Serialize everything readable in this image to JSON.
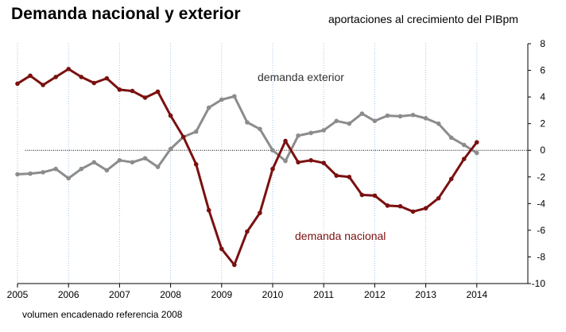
{
  "header": {
    "title": "Demanda nacional y exterior",
    "subtitle": "aportaciones al crecimiento del PIBpm"
  },
  "footnote": "volumen  encadenado referencia 2008",
  "chart_data": {
    "type": "line",
    "title": "Demanda nacional y exterior",
    "ylabel": "aportaciones al crecimiento del PIBpm",
    "xlabel": "",
    "ylim": [
      -10,
      8
    ],
    "yticks": [
      8,
      6,
      4,
      2,
      0,
      -2,
      -4,
      -6,
      -8,
      -10
    ],
    "xlim": [
      2005.0,
      2015.0
    ],
    "year_labels": [
      "2005",
      "2006",
      "2007",
      "2008",
      "2009",
      "2010",
      "2011",
      "2012",
      "2013",
      "2014"
    ],
    "zero_line": "dotted",
    "vertical_grid": "dotted-blue",
    "series": [
      {
        "name": "demanda exterior",
        "color": "#8c8c8c",
        "label_text": "demanda exterior",
        "label_color": "#333333",
        "x": [
          2005.0,
          2005.25,
          2005.5,
          2005.75,
          2006.0,
          2006.25,
          2006.5,
          2006.75,
          2007.0,
          2007.25,
          2007.5,
          2007.75,
          2008.0,
          2008.25,
          2008.5,
          2008.75,
          2009.0,
          2009.25,
          2009.5,
          2009.75,
          2010.0,
          2010.25,
          2010.5,
          2010.75,
          2011.0,
          2011.25,
          2011.5,
          2011.75,
          2012.0,
          2012.25,
          2012.5,
          2012.75,
          2013.0,
          2013.25,
          2013.5,
          2013.75,
          2014.0
        ],
        "values": [
          -1.8,
          -1.75,
          -1.65,
          -1.4,
          -2.1,
          -1.4,
          -0.9,
          -1.5,
          -0.75,
          -0.9,
          -0.6,
          -1.25,
          0.1,
          1.0,
          1.4,
          3.2,
          3.8,
          4.05,
          2.1,
          1.6,
          0.0,
          -0.8,
          1.1,
          1.3,
          1.5,
          2.2,
          2.0,
          2.75,
          2.2,
          2.6,
          2.55,
          2.65,
          2.4,
          2.0,
          0.95,
          0.4,
          -0.2
        ]
      },
      {
        "name": "demanda nacional",
        "color": "#7b1010",
        "label_text": "demanda nacional",
        "label_color": "#7b1010",
        "x": [
          2005.0,
          2005.25,
          2005.5,
          2005.75,
          2006.0,
          2006.25,
          2006.5,
          2006.75,
          2007.0,
          2007.25,
          2007.5,
          2007.75,
          2008.0,
          2008.25,
          2008.5,
          2008.75,
          2009.0,
          2009.25,
          2009.5,
          2009.75,
          2010.0,
          2010.25,
          2010.5,
          2010.75,
          2011.0,
          2011.25,
          2011.5,
          2011.75,
          2012.0,
          2012.25,
          2012.5,
          2012.75,
          2013.0,
          2013.25,
          2013.5,
          2013.75,
          2014.0
        ],
        "values": [
          5.0,
          5.6,
          4.9,
          5.5,
          6.1,
          5.5,
          5.05,
          5.4,
          4.55,
          4.45,
          3.95,
          4.4,
          2.6,
          1.0,
          -1.05,
          -4.5,
          -7.4,
          -8.6,
          -6.1,
          -4.7,
          -1.4,
          0.7,
          -0.9,
          -0.75,
          -0.95,
          -1.9,
          -2.0,
          -3.35,
          -3.4,
          -4.15,
          -4.2,
          -4.6,
          -4.35,
          -3.6,
          -2.15,
          -0.65,
          0.6
        ]
      }
    ]
  }
}
